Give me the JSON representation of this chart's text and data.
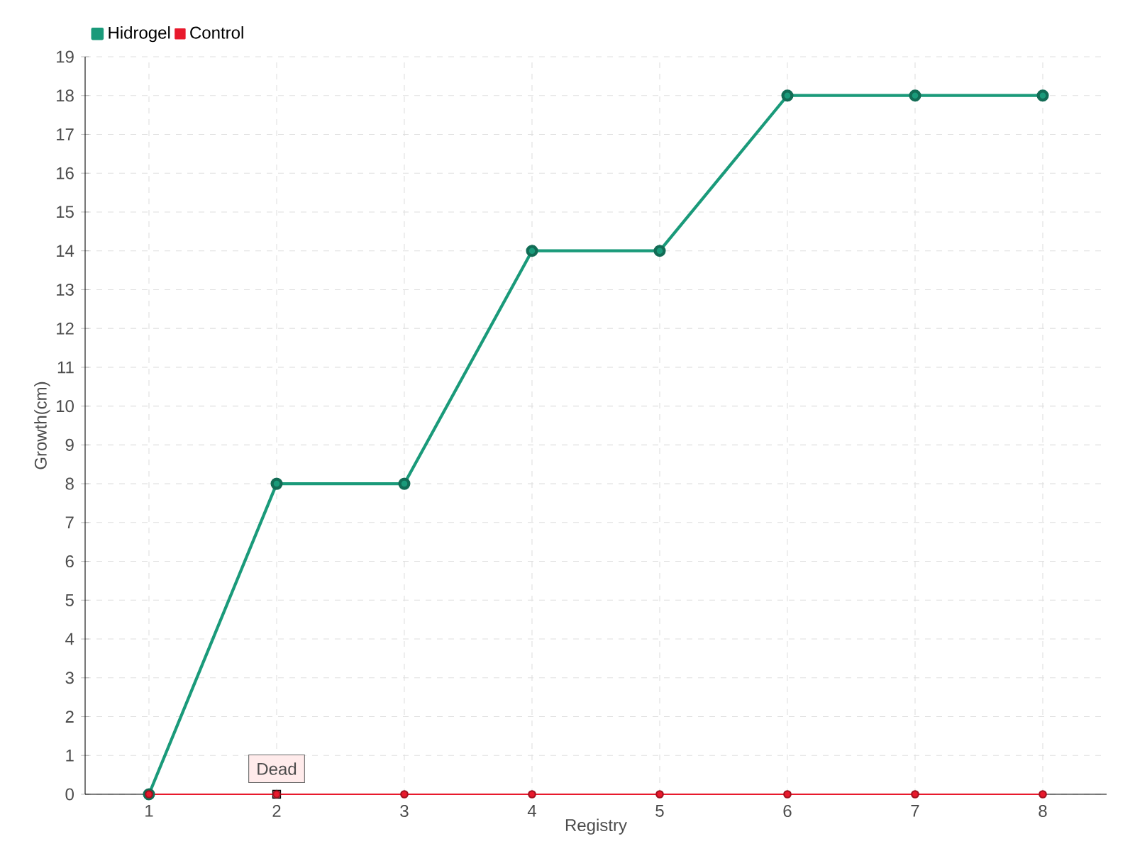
{
  "chart_data": {
    "type": "line",
    "xlabel": "Registry",
    "ylabel": "Growth(cm)",
    "categories": [
      "1",
      "2",
      "3",
      "4",
      "5",
      "6",
      "7",
      "8"
    ],
    "series": [
      {
        "name": "Hidrogel",
        "color": "#1a9a7a",
        "values": [
          0,
          8,
          8,
          14,
          14,
          18,
          18,
          18
        ]
      },
      {
        "name": "Control",
        "color": "#e8192c",
        "values": [
          0,
          0,
          0,
          0,
          0,
          0,
          0,
          0
        ]
      }
    ],
    "ylim": [
      0,
      19
    ],
    "yticks": [
      0,
      1,
      2,
      3,
      4,
      5,
      6,
      7,
      8,
      9,
      10,
      11,
      12,
      13,
      14,
      15,
      16,
      17,
      18,
      19
    ],
    "grid": true,
    "legend": "top left",
    "marker": "circle",
    "line_style": "solid",
    "annotations": [
      {
        "text": "Dead",
        "x": "2",
        "y": 0
      }
    ]
  }
}
